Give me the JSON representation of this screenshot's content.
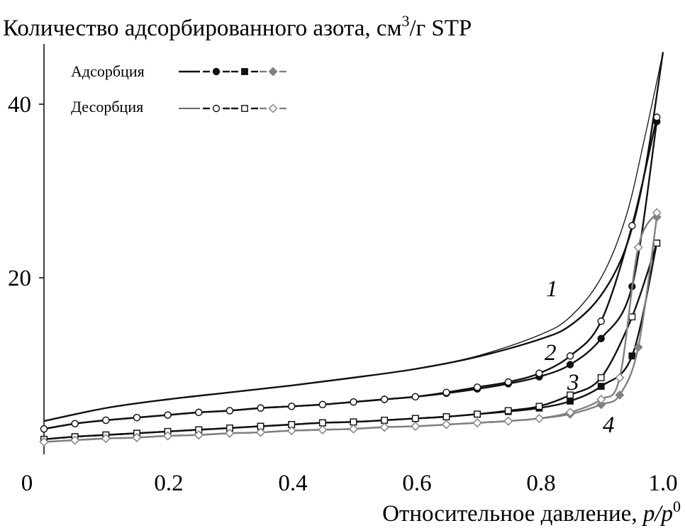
{
  "chart_data": {
    "type": "line",
    "title": "Количество адсорбированного азота, см",
    "title_sup": "3",
    "title_suffix": "/г STP",
    "xlabel": "Относительное давление, ",
    "xlabel_var": "p/p",
    "xlabel_sup": "0",
    "xlim": [
      0.0,
      1.0
    ],
    "ylim": [
      0,
      46
    ],
    "x_ticks": [
      "0",
      "0.2",
      "0.4",
      "0.6",
      "0.8",
      "1.0"
    ],
    "y_ticks": [
      "20",
      "40"
    ],
    "legend": {
      "placement": "top-left",
      "adsorption_label": "Адсорбция",
      "desorption_label": "Десорбция"
    },
    "curve_labels": [
      "1",
      "2",
      "3",
      "4"
    ],
    "series": [
      {
        "curve": "1",
        "branch": "adsorption",
        "color": "#111111",
        "marker": "none",
        "dashed": false,
        "x": [
          0.0,
          0.1,
          0.2,
          0.3,
          0.4,
          0.5,
          0.6,
          0.7,
          0.8,
          0.85,
          0.9,
          0.94,
          0.97,
          1.0
        ],
        "y": [
          3.5,
          5.0,
          6.0,
          6.8,
          7.6,
          8.5,
          9.5,
          10.9,
          12.9,
          14.5,
          18.0,
          23.5,
          32.0,
          46.0
        ]
      },
      {
        "curve": "1",
        "branch": "desorption",
        "color": "#111111",
        "marker": "none",
        "dashed": false,
        "thin": true,
        "x": [
          0.0,
          0.1,
          0.2,
          0.3,
          0.4,
          0.5,
          0.6,
          0.7,
          0.8,
          0.85,
          0.9,
          0.94,
          0.97,
          1.0
        ],
        "y": [
          3.5,
          5.0,
          6.0,
          6.8,
          7.6,
          8.5,
          9.5,
          11.0,
          13.4,
          15.5,
          20.0,
          27.0,
          36.0,
          46.0
        ]
      },
      {
        "curve": "2",
        "branch": "adsorption",
        "color": "#111111",
        "marker": "filled-circle",
        "dashed": true,
        "x": [
          0.0,
          0.05,
          0.1,
          0.15,
          0.2,
          0.25,
          0.3,
          0.35,
          0.4,
          0.45,
          0.5,
          0.55,
          0.6,
          0.65,
          0.7,
          0.75,
          0.8,
          0.85,
          0.9,
          0.95,
          0.99
        ],
        "y": [
          2.6,
          3.2,
          3.6,
          3.9,
          4.2,
          4.5,
          4.7,
          5.0,
          5.2,
          5.4,
          5.7,
          6.0,
          6.3,
          6.7,
          7.2,
          7.8,
          8.6,
          10.0,
          13.0,
          19.0,
          38.0
        ]
      },
      {
        "curve": "2",
        "branch": "desorption",
        "color": "#111111",
        "marker": "open-circle",
        "dashed": true,
        "x": [
          0.0,
          0.05,
          0.1,
          0.15,
          0.2,
          0.25,
          0.3,
          0.35,
          0.4,
          0.45,
          0.5,
          0.55,
          0.6,
          0.65,
          0.7,
          0.75,
          0.8,
          0.85,
          0.9,
          0.95,
          0.99
        ],
        "y": [
          2.6,
          3.2,
          3.6,
          3.9,
          4.2,
          4.5,
          4.7,
          5.0,
          5.2,
          5.4,
          5.7,
          6.0,
          6.3,
          6.8,
          7.4,
          8.0,
          9.0,
          11.0,
          15.0,
          26.0,
          38.5
        ]
      },
      {
        "curve": "3",
        "branch": "adsorption",
        "color": "#111111",
        "marker": "filled-square",
        "dashed": true,
        "x": [
          0.0,
          0.05,
          0.1,
          0.15,
          0.2,
          0.25,
          0.3,
          0.35,
          0.4,
          0.45,
          0.5,
          0.55,
          0.6,
          0.65,
          0.7,
          0.75,
          0.8,
          0.85,
          0.9,
          0.95,
          0.99
        ],
        "y": [
          1.4,
          1.7,
          1.9,
          2.1,
          2.3,
          2.5,
          2.7,
          2.9,
          3.1,
          3.3,
          3.4,
          3.6,
          3.8,
          4.0,
          4.3,
          4.6,
          5.0,
          5.8,
          7.5,
          11.0,
          24.0
        ]
      },
      {
        "curve": "3",
        "branch": "desorption",
        "color": "#111111",
        "marker": "open-square",
        "dashed": true,
        "x": [
          0.0,
          0.05,
          0.1,
          0.15,
          0.2,
          0.25,
          0.3,
          0.35,
          0.4,
          0.45,
          0.5,
          0.55,
          0.6,
          0.65,
          0.7,
          0.75,
          0.8,
          0.85,
          0.9,
          0.95,
          0.99
        ],
        "y": [
          1.4,
          1.7,
          1.9,
          2.1,
          2.3,
          2.5,
          2.7,
          2.9,
          3.1,
          3.3,
          3.4,
          3.6,
          3.8,
          4.0,
          4.3,
          4.7,
          5.2,
          6.5,
          8.5,
          15.5,
          24.0
        ]
      },
      {
        "curve": "4",
        "branch": "adsorption",
        "color": "#808080",
        "marker": "filled-diamond",
        "dashed": true,
        "x": [
          0.0,
          0.05,
          0.1,
          0.15,
          0.2,
          0.25,
          0.3,
          0.35,
          0.4,
          0.45,
          0.5,
          0.55,
          0.6,
          0.65,
          0.7,
          0.75,
          0.8,
          0.85,
          0.9,
          0.93,
          0.96,
          0.99
        ],
        "y": [
          1.1,
          1.3,
          1.5,
          1.6,
          1.8,
          1.9,
          2.1,
          2.2,
          2.4,
          2.5,
          2.6,
          2.8,
          2.9,
          3.1,
          3.3,
          3.5,
          3.8,
          4.3,
          5.4,
          6.5,
          12.0,
          27.0
        ]
      },
      {
        "curve": "4",
        "branch": "desorption",
        "color": "#808080",
        "marker": "open-diamond",
        "dashed": true,
        "x": [
          0.0,
          0.05,
          0.1,
          0.15,
          0.2,
          0.25,
          0.3,
          0.35,
          0.4,
          0.45,
          0.5,
          0.55,
          0.6,
          0.65,
          0.7,
          0.75,
          0.8,
          0.85,
          0.9,
          0.93,
          0.96,
          0.99
        ],
        "y": [
          1.1,
          1.3,
          1.5,
          1.6,
          1.8,
          1.9,
          2.1,
          2.2,
          2.4,
          2.5,
          2.6,
          2.8,
          2.9,
          3.1,
          3.3,
          3.5,
          3.8,
          4.5,
          6.0,
          8.5,
          23.5,
          27.5
        ]
      }
    ]
  }
}
